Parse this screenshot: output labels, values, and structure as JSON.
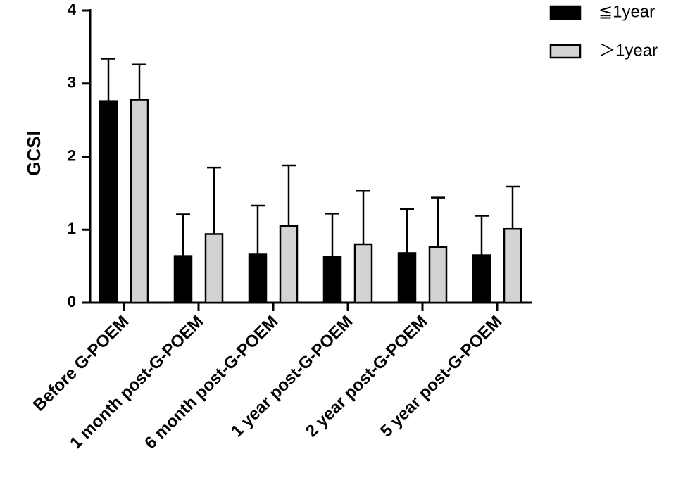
{
  "chart_data": {
    "type": "bar",
    "title": "",
    "xlabel": "",
    "ylabel": "GCSI",
    "ylim": [
      0,
      4
    ],
    "yticks": [
      0,
      1,
      2,
      3,
      4
    ],
    "grid": false,
    "legend_position": "top-right",
    "error_bars": "upper SD whisker",
    "categories": [
      "Before G-POEM",
      "1 month post-G-POEM",
      "6 month post-G-POEM",
      "1 year post-G-POEM",
      "2 year post-G-POEM",
      "5 year post-G-POEM"
    ],
    "series": [
      {
        "name": "≦1year",
        "color": "#000000",
        "values": [
          2.76,
          0.64,
          0.66,
          0.63,
          0.68,
          0.65
        ],
        "errors": [
          0.58,
          0.57,
          0.67,
          0.59,
          0.6,
          0.54
        ]
      },
      {
        "name": "＞1year",
        "color": "#d3d3d3",
        "values": [
          2.78,
          0.94,
          1.05,
          0.8,
          0.76,
          1.01
        ],
        "errors": [
          0.48,
          0.91,
          0.83,
          0.73,
          0.68,
          0.58
        ]
      }
    ]
  }
}
